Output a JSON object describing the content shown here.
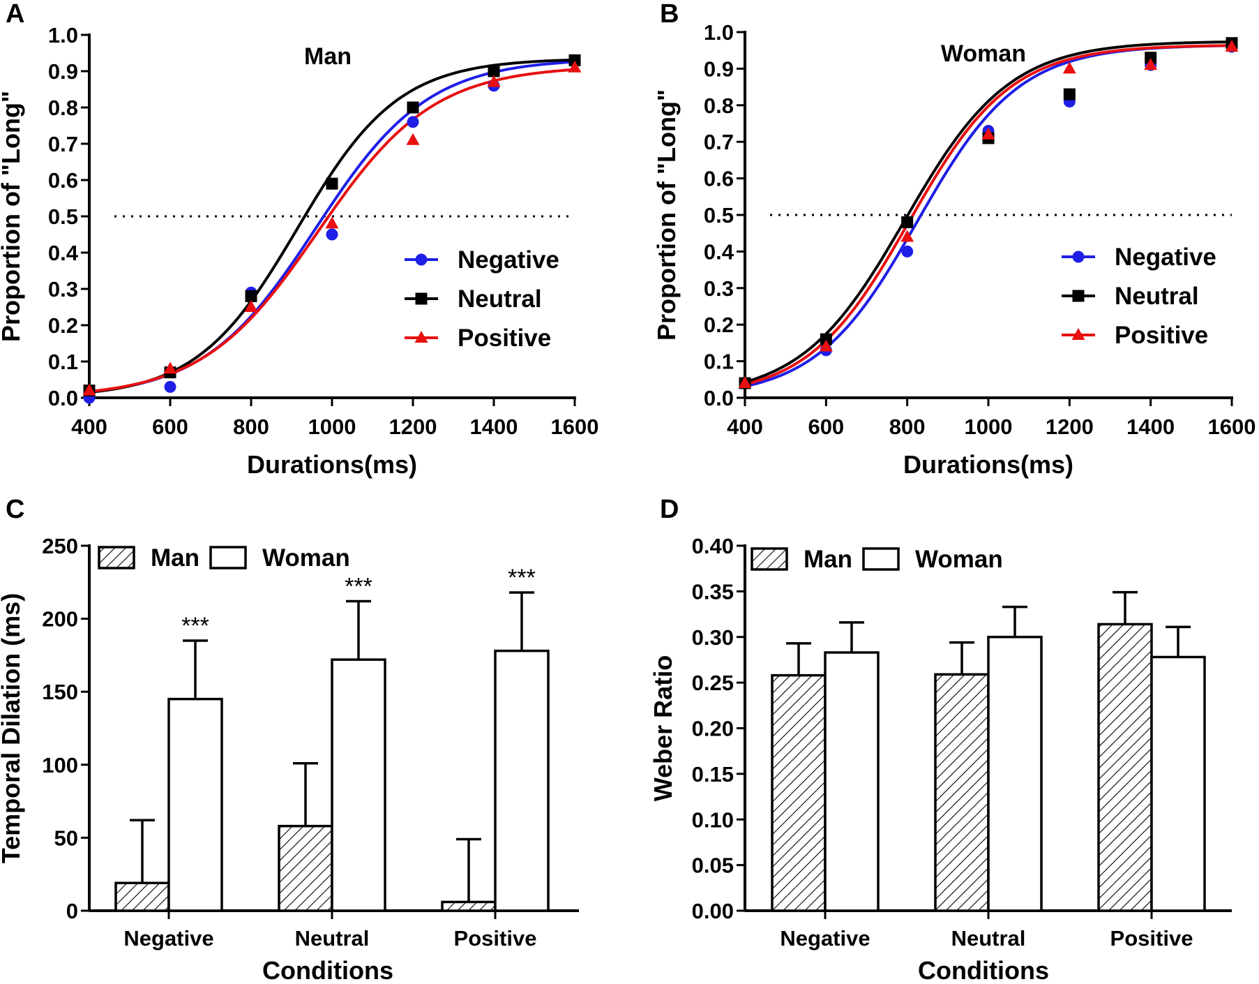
{
  "chart_data": [
    {
      "panel": "A",
      "type": "scatter",
      "title": "Man",
      "xlabel": "Durations(ms)",
      "ylabel": "Proportion of \"Long\"",
      "xlim": [
        400,
        1600
      ],
      "ylim": [
        0.0,
        1.0
      ],
      "xticks": [
        "400",
        "600",
        "800",
        "1000",
        "1200",
        "1400",
        "1600"
      ],
      "yticks": [
        "0.0",
        "0.1",
        "0.2",
        "0.3",
        "0.4",
        "0.5",
        "0.6",
        "0.7",
        "0.8",
        "0.9",
        "1.0"
      ],
      "reference_line": 0.5,
      "legend_position": "lower-right",
      "x": [
        400,
        600,
        800,
        1000,
        1200,
        1400,
        1600
      ],
      "series": [
        {
          "name": "Negative",
          "color": "#1f1fe6",
          "marker": "circle",
          "values": [
            0.0,
            0.03,
            0.29,
            0.45,
            0.76,
            0.86,
            0.93
          ],
          "fit_pse": 960,
          "fit_slope": 0.0072
        },
        {
          "name": "Neutral",
          "color": "#000000",
          "marker": "square",
          "values": [
            0.02,
            0.07,
            0.28,
            0.59,
            0.8,
            0.9,
            0.93
          ],
          "fit_pse": 915,
          "fit_slope": 0.008
        },
        {
          "name": "Positive",
          "color": "#e81010",
          "marker": "triangle",
          "values": [
            0.02,
            0.08,
            0.25,
            0.48,
            0.71,
            0.87,
            0.91
          ],
          "fit_pse": 965,
          "fit_slope": 0.007
        }
      ]
    },
    {
      "panel": "B",
      "type": "scatter",
      "title": "Woman",
      "xlabel": "Durations(ms)",
      "ylabel": "Proportion of \"Long\"",
      "xlim": [
        400,
        1600
      ],
      "ylim": [
        0.0,
        1.0
      ],
      "xticks": [
        "400",
        "600",
        "800",
        "1000",
        "1200",
        "1400",
        "1600"
      ],
      "yticks": [
        "0.0",
        "0.1",
        "0.2",
        "0.3",
        "0.4",
        "0.5",
        "0.6",
        "0.7",
        "0.8",
        "0.9",
        "1.0"
      ],
      "reference_line": 0.5,
      "legend_position": "lower-right",
      "x": [
        400,
        600,
        800,
        1000,
        1200,
        1400,
        1600
      ],
      "series": [
        {
          "name": "Negative",
          "color": "#1f1fe6",
          "marker": "circle",
          "values": [
            0.04,
            0.13,
            0.4,
            0.73,
            0.81,
            0.91,
            0.96
          ],
          "fit_pse": 825,
          "fit_slope": 0.008
        },
        {
          "name": "Neutral",
          "color": "#000000",
          "marker": "square",
          "values": [
            0.04,
            0.16,
            0.48,
            0.71,
            0.83,
            0.93,
            0.97
          ],
          "fit_pse": 795,
          "fit_slope": 0.0078
        },
        {
          "name": "Positive",
          "color": "#e81010",
          "marker": "triangle",
          "values": [
            0.04,
            0.14,
            0.44,
            0.72,
            0.9,
            0.91,
            0.96
          ],
          "fit_pse": 805,
          "fit_slope": 0.008
        }
      ]
    },
    {
      "panel": "C",
      "type": "bar",
      "xlabel": "Conditions",
      "ylabel": "Temporal Dilation (ms)",
      "ylim": [
        0,
        250
      ],
      "yticks": [
        "0",
        "50",
        "100",
        "150",
        "200",
        "250"
      ],
      "categories": [
        "Negative",
        "Neutral",
        "Positive"
      ],
      "legend_position": "top-left",
      "series": [
        {
          "name": "Man",
          "pattern": "hatched",
          "values": [
            19,
            58,
            6
          ],
          "errors": [
            43,
            43,
            43
          ]
        },
        {
          "name": "Woman",
          "pattern": "open",
          "values": [
            145,
            172,
            178
          ],
          "errors": [
            40,
            40,
            40
          ]
        }
      ],
      "annotations": [
        "***",
        "***",
        "***"
      ]
    },
    {
      "panel": "D",
      "type": "bar",
      "xlabel": "Conditions",
      "ylabel": "Weber Ratio",
      "ylim": [
        0.0,
        0.4
      ],
      "yticks": [
        "0.00",
        "0.05",
        "0.10",
        "0.15",
        "0.20",
        "0.25",
        "0.30",
        "0.35",
        "0.40"
      ],
      "categories": [
        "Negative",
        "Neutral",
        "Positive"
      ],
      "legend_position": "top-left",
      "series": [
        {
          "name": "Man",
          "pattern": "hatched",
          "values": [
            0.258,
            0.259,
            0.314
          ],
          "errors": [
            0.035,
            0.035,
            0.035
          ]
        },
        {
          "name": "Woman",
          "pattern": "open",
          "values": [
            0.283,
            0.3,
            0.278
          ],
          "errors": [
            0.033,
            0.033,
            0.033
          ]
        }
      ]
    }
  ]
}
